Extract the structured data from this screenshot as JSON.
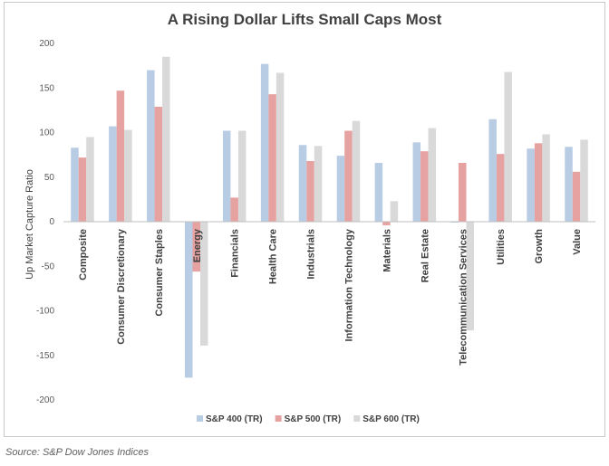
{
  "chart_data": {
    "type": "bar",
    "title": "A Rising Dollar Lifts Small Caps Most",
    "xlabel": "",
    "ylabel": "Up Market Capture Ratio",
    "ylim": [
      -200,
      200
    ],
    "yticks": [
      -200,
      -150,
      -100,
      -50,
      0,
      50,
      100,
      150,
      200
    ],
    "grid": false,
    "legend_position": "bottom",
    "categories": [
      "Composite",
      "Consumer Discretionary",
      "Consumer Staples",
      "Energy",
      "Financials",
      "Health Care",
      "Industrials",
      "Information Technology",
      "Materials",
      "Real Estate",
      "Telecommunication Services",
      "Utilities",
      "Growth",
      "Value"
    ],
    "series": [
      {
        "name": "S&P 400 (TR)",
        "color": "#b8cce4",
        "values": [
          83,
          107,
          170,
          -175,
          102,
          177,
          86,
          74,
          66,
          89,
          -1,
          115,
          82,
          84
        ]
      },
      {
        "name": "S&P 500 (TR)",
        "color": "#e6a1a1",
        "values": [
          72,
          147,
          129,
          -56,
          27,
          143,
          68,
          102,
          -4,
          79,
          66,
          76,
          88,
          56
        ]
      },
      {
        "name": "S&P 600 (TR)",
        "color": "#d9d9d9",
        "values": [
          95,
          103,
          185,
          -139,
          102,
          167,
          85,
          113,
          23,
          105,
          -122,
          168,
          98,
          92
        ]
      }
    ]
  },
  "source": "Source: S&P Dow Jones Indices"
}
